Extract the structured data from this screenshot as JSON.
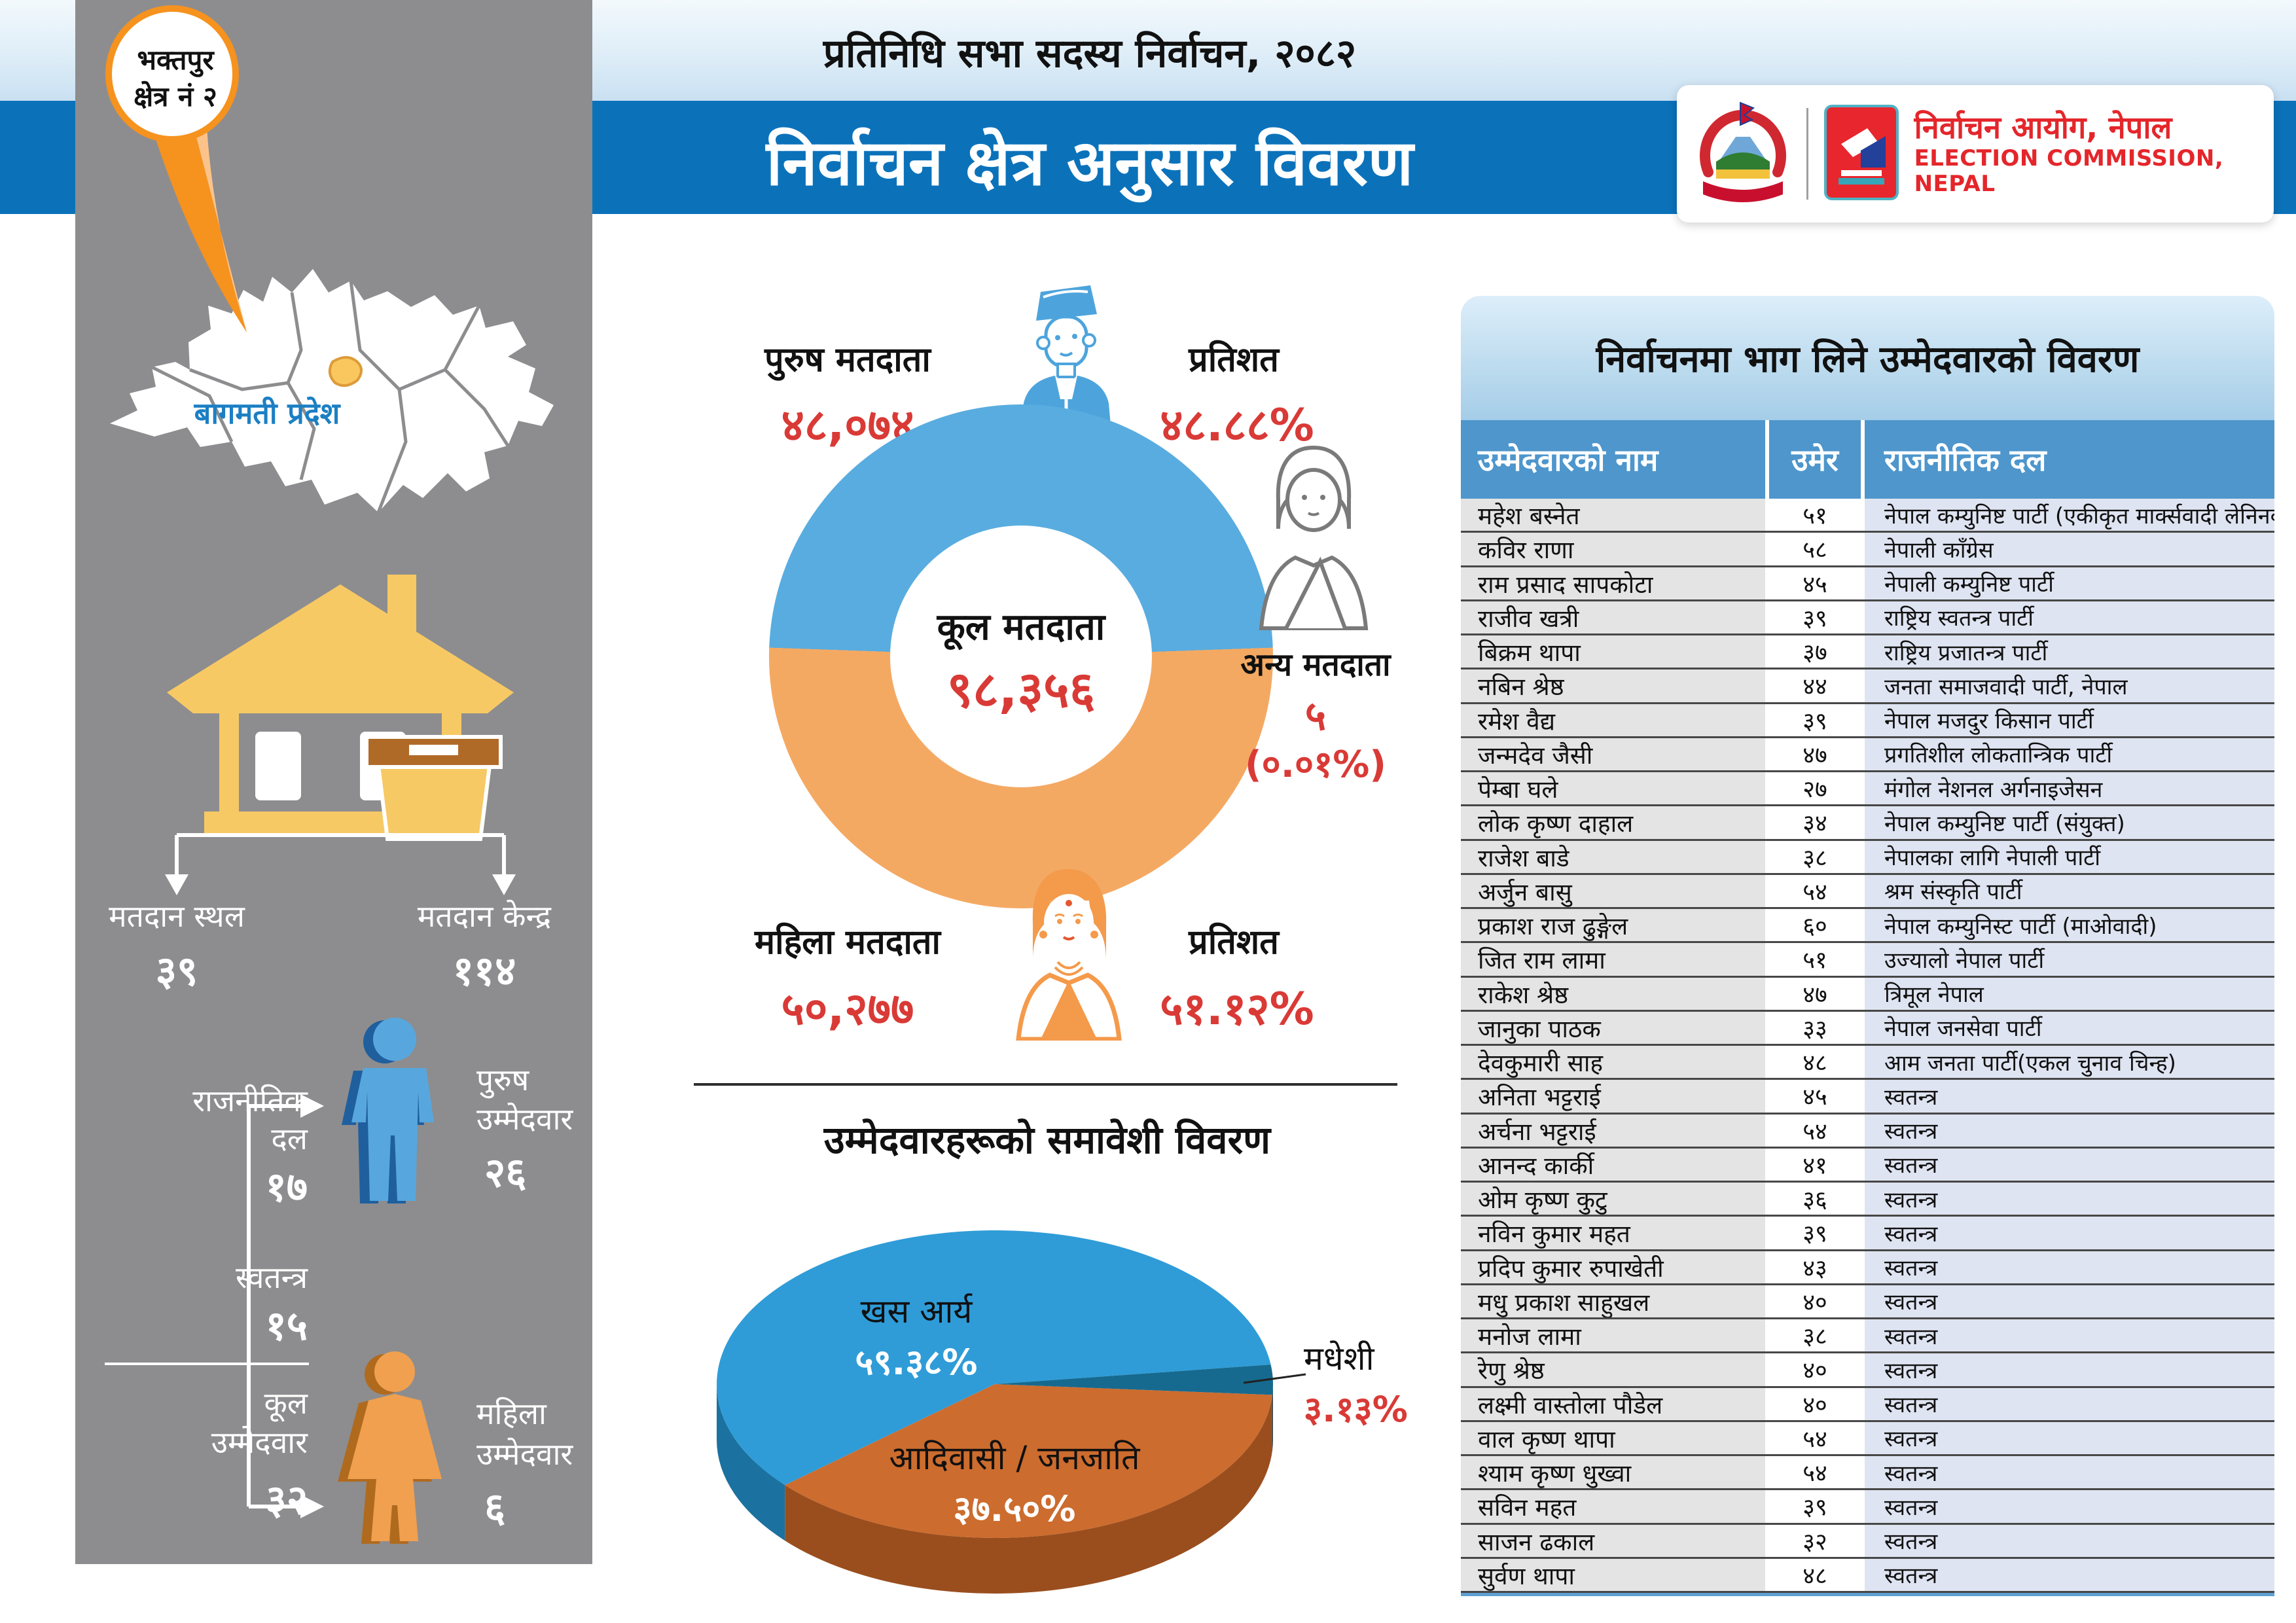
{
  "header": {
    "super_title": "प्रतिनिधि सभा सदस्य निर्वाचन, २०८२",
    "main_title": "निर्वाचन क्षेत्र अनुसार विवरण",
    "band_color": "#0b72ba",
    "logo": {
      "np_title": "निर्वाचन आयोग, नेपाल",
      "en_title": "ELECTION COMMISSION, NEPAL",
      "accent_color": "#e4262b"
    }
  },
  "sidebar": {
    "pin": {
      "line1": "भक्तपुर",
      "line2": "क्षेत्र नं २",
      "color": "#f6921e"
    },
    "province_label": "बागमती प्रदेश",
    "polling": {
      "place_label": "मतदान स्थल",
      "place_value": "३९",
      "centre_label": "मतदान केन्द्र",
      "centre_value": "११४"
    },
    "candidates_summary": {
      "party_label1": "राजनीतिक",
      "party_label2": "दल",
      "party_value": "१७",
      "independent_label": "स्वतन्त्र",
      "independent_value": "१५",
      "total_label1": "कूल",
      "total_label2": "उम्मेदवार",
      "total_value": "३२",
      "male_label1": "पुरुष",
      "male_label2": "उम्मेदवार",
      "male_value": "२६",
      "female_label1": "महिला",
      "female_label2": "उम्मेदवार",
      "female_value": "६"
    }
  },
  "voters": {
    "male": {
      "label": "पुरुष मतदाता",
      "value": "४८,०७४",
      "pct_label": "प्रतिशत",
      "pct": "४८.८८%"
    },
    "female": {
      "label": "महिला मतदाता",
      "value": "५०,२७७",
      "pct_label": "प्रतिशत",
      "pct": "५१.१२%"
    },
    "total": {
      "label": "कूल मतदाता",
      "value": "९८,३५६"
    },
    "other": {
      "label": "अन्य मतदाता",
      "value": "५",
      "pct": "(०.०१%)"
    }
  },
  "inclusion": {
    "title": "उम्मेदवारहरूको समावेशी विवरण",
    "khas_label": "खस आर्य",
    "khas_pct": "५९.३८%",
    "janajati_label": "आदिवासी / जनजाति",
    "janajati_pct": "३७.५०%",
    "madhesi_label": "मधेशी",
    "madhesi_pct": "३.१३%"
  },
  "table": {
    "title": "निर्वाचनमा भाग लिने उम्मेदवारको विवरण",
    "columns": [
      "उम्मेदवारको नाम",
      "उमेर",
      "राजनीतिक दल"
    ],
    "rows": [
      {
        "name": "महेश बस्नेत",
        "age": "५१",
        "party": "नेपाल कम्युनिष्ट पार्टी (एकीकृत मार्क्सवादी लेनिनवादी)"
      },
      {
        "name": "कविर राणा",
        "age": "५८",
        "party": "नेपाली काँग्रेस"
      },
      {
        "name": "राम प्रसाद सापकोटा",
        "age": "४५",
        "party": "नेपाली कम्युनिष्ट पार्टी"
      },
      {
        "name": "राजीव खत्री",
        "age": "३९",
        "party": "राष्ट्रिय स्वतन्त्र पार्टी"
      },
      {
        "name": "बिक्रम थापा",
        "age": "३७",
        "party": "राष्ट्रिय प्रजातन्त्र पार्टी"
      },
      {
        "name": "नबिन श्रेष्ठ",
        "age": "४४",
        "party": "जनता समाजवादी पार्टी, नेपाल"
      },
      {
        "name": "रमेश वैद्य",
        "age": "३९",
        "party": "नेपाल मजदुर किसान पार्टी"
      },
      {
        "name": "जन्मदेव जैसी",
        "age": "४७",
        "party": "प्रगतिशील लोकतान्त्रिक पार्टी"
      },
      {
        "name": "पेम्बा घले",
        "age": "२७",
        "party": "मंगोल नेशनल अर्गनाइजेसन"
      },
      {
        "name": "लोक कृष्ण दाहाल",
        "age": "३४",
        "party": "नेपाल कम्युनिष्ट पार्टी (संयुक्त)"
      },
      {
        "name": "राजेश बाडे",
        "age": "३८",
        "party": "नेपालका लागि नेपाली पार्टी"
      },
      {
        "name": "अर्जुन बासु",
        "age": "५४",
        "party": "श्रम संस्कृति पार्टी"
      },
      {
        "name": "प्रकाश राज ढुङ्गेल",
        "age": "६०",
        "party": "नेपाल कम्युनिस्ट पार्टी (माओवादी)"
      },
      {
        "name": "जित राम लामा",
        "age": "५१",
        "party": "उज्यालो नेपाल पार्टी"
      },
      {
        "name": "राकेश श्रेष्ठ",
        "age": "४७",
        "party": "त्रिमूल नेपाल"
      },
      {
        "name": "जानुका पाठक",
        "age": "३३",
        "party": "नेपाल जनसेवा पार्टी"
      },
      {
        "name": "देवकुमारी साह",
        "age": "४८",
        "party": "आम जनता पार्टी(एकल चुनाव चिन्ह)"
      },
      {
        "name": "अनिता भट्टराई",
        "age": "४५",
        "party": "स्वतन्त्र"
      },
      {
        "name": "अर्चना भट्टराई",
        "age": "५४",
        "party": "स्वतन्त्र"
      },
      {
        "name": "आनन्द कार्की",
        "age": "४१",
        "party": "स्वतन्त्र"
      },
      {
        "name": "ओम कृष्ण कुटु",
        "age": "३६",
        "party": "स्वतन्त्र"
      },
      {
        "name": "नविन कुमार महत",
        "age": "३९",
        "party": "स्वतन्त्र"
      },
      {
        "name": "प्रदिप कुमार रुपाखेती",
        "age": "४३",
        "party": "स्वतन्त्र"
      },
      {
        "name": "मधु प्रकाश साहुखल",
        "age": "४०",
        "party": "स्वतन्त्र"
      },
      {
        "name": "मनोज लामा",
        "age": "३८",
        "party": "स्वतन्त्र"
      },
      {
        "name": "रेणु श्रेष्ठ",
        "age": "४०",
        "party": "स्वतन्त्र"
      },
      {
        "name": "लक्ष्मी वास्तोला पौडेल",
        "age": "४०",
        "party": "स्वतन्त्र"
      },
      {
        "name": "वाल कृष्ण थापा",
        "age": "५४",
        "party": "स्वतन्त्र"
      },
      {
        "name": "श्याम कृष्ण धुख्वा",
        "age": "५४",
        "party": "स्वतन्त्र"
      },
      {
        "name": "सविन महत",
        "age": "३९",
        "party": "स्वतन्त्र"
      },
      {
        "name": "साजन ढकाल",
        "age": "३२",
        "party": "स्वतन्त्र"
      },
      {
        "name": "सुर्वण थापा",
        "age": "४८",
        "party": "स्वतन्त्र"
      }
    ]
  },
  "chart_data": [
    {
      "type": "pie",
      "variant": "donut",
      "title": "कूल मतदाता",
      "total": 98356,
      "series": [
        {
          "name": "पुरुष मतदाता",
          "value": 48074,
          "pct": 48.88,
          "color": "#59acdf"
        },
        {
          "name": "महिला मतदाता",
          "value": 50277,
          "pct": 51.12,
          "color": "#f4a963"
        },
        {
          "name": "अन्य मतदाता",
          "value": 5,
          "pct": 0.01,
          "color": "#cccccc"
        }
      ],
      "legend_position": "around"
    },
    {
      "type": "pie",
      "variant": "3d",
      "title": "उम्मेदवारहरूको समावेशी विवरण",
      "series": [
        {
          "name": "खस आर्य",
          "pct": 59.38,
          "color": "#2f9cd8"
        },
        {
          "name": "आदिवासी / जनजाति",
          "pct": 37.5,
          "color": "#cc6c2e"
        },
        {
          "name": "मधेशी",
          "pct": 3.13,
          "color": "#166a8f"
        }
      ],
      "legend_position": "labels-on-slices"
    }
  ]
}
